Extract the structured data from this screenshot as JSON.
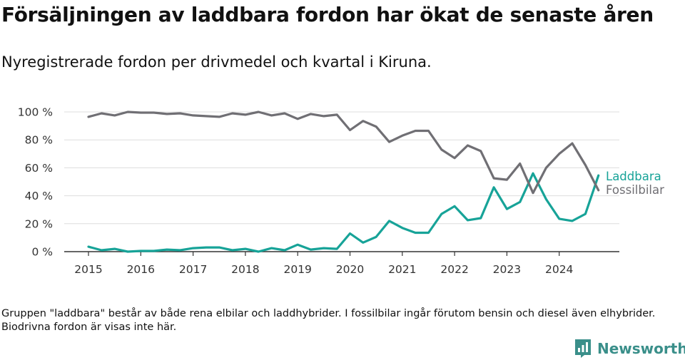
{
  "title": "Försäljningen av laddbara fordon har ökat de senaste åren",
  "subtitle": "Nyregistrerade fordon per drivmedel och kvartal i Kiruna.",
  "footnote": "Gruppen \"laddbara\" består av både rena elbilar och laddhybrider. I fossilbilar ingår förutom bensin och diesel även elhybrider. Biodrivna fordon är visas inte här.",
  "logo": {
    "text": "Newsworthy",
    "icon": "newsworthy-logo-icon"
  },
  "colors": {
    "laddbara": "#17a398",
    "fossil": "#706f74",
    "grid": "#dddddd",
    "axis": "#333333"
  },
  "chart_data": {
    "type": "line",
    "x_start": "2015 Q1",
    "x_step": "quarter",
    "x_ticks": [
      "2015",
      "2016",
      "2017",
      "2018",
      "2019",
      "2020",
      "2021",
      "2022",
      "2023",
      "2024"
    ],
    "y_ticks": [
      "0 %",
      "20 %",
      "40 %",
      "60 %",
      "80 %",
      "100 %"
    ],
    "ylim": [
      0,
      100
    ],
    "grid": true,
    "legend": "end-of-line labels",
    "series": [
      {
        "name": "Laddbara",
        "color": "#17a398",
        "values": [
          3.5,
          1,
          2,
          0,
          0.5,
          0.5,
          1.5,
          1,
          2.5,
          3,
          3,
          1,
          2,
          0,
          2.5,
          1,
          5,
          1.5,
          2.5,
          2,
          13,
          6.5,
          10.5,
          22,
          17,
          13.5,
          13.5,
          27,
          32.5,
          22.5,
          24,
          46,
          30.5,
          35.5,
          56,
          37.5,
          23.5,
          22,
          27,
          54.5
        ]
      },
      {
        "name": "Fossilbilar",
        "color": "#706f74",
        "values": [
          96.5,
          99,
          97.5,
          100,
          99.5,
          99.5,
          98.5,
          99,
          97.5,
          97,
          96.5,
          99,
          98,
          100,
          97.5,
          99,
          95,
          98.5,
          97,
          98,
          87,
          93.5,
          89.5,
          78.5,
          83,
          86.5,
          86.5,
          73,
          67,
          76,
          72,
          52.5,
          51.5,
          63,
          42,
          60,
          70,
          77.5,
          62,
          44
        ]
      }
    ]
  }
}
